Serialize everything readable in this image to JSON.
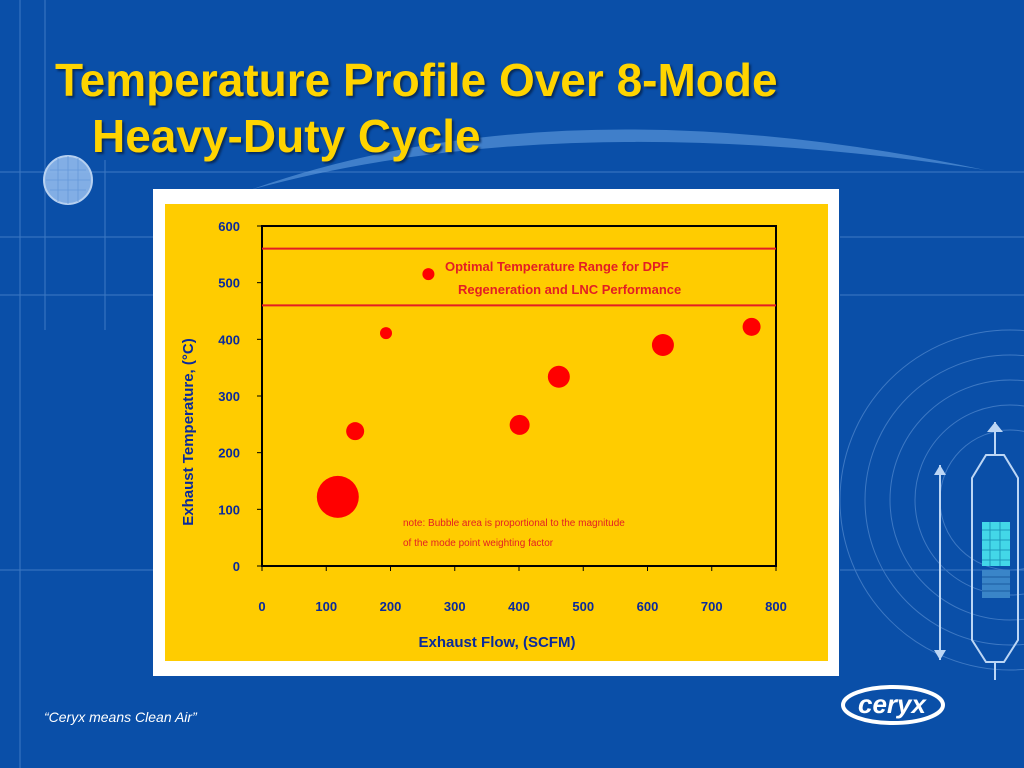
{
  "slide": {
    "title_line1": "Temperature Profile Over 8-Mode",
    "title_line2": "Heavy-Duty Cycle",
    "slogan": "“Ceryx means Clean Air”",
    "logo_text": "ceryx"
  },
  "colors": {
    "background": "#0a4fa8",
    "title": "#ffd400",
    "plot_background": "#ffcc00",
    "bubble": "#ff0000",
    "axis_text": "#0a2a9c",
    "range_line": "#e31e24"
  },
  "chart_data": {
    "type": "scatter",
    "xlabel": "Exhaust Flow, (SCFM)",
    "ylabel": "Exhaust Temperature, (°C)",
    "xlim": [
      0,
      800
    ],
    "ylim": [
      0,
      600
    ],
    "xticks": [
      "0",
      "100",
      "200",
      "300",
      "400",
      "500",
      "600",
      "700",
      "800"
    ],
    "yticks": [
      "0",
      "100",
      "200",
      "300",
      "400",
      "500",
      "600"
    ],
    "points": [
      {
        "x": 118,
        "y": 122,
        "r": 21
      },
      {
        "x": 145,
        "y": 238,
        "r": 9
      },
      {
        "x": 193,
        "y": 411,
        "r": 6
      },
      {
        "x": 259,
        "y": 515,
        "r": 6
      },
      {
        "x": 401,
        "y": 249,
        "r": 10
      },
      {
        "x": 462,
        "y": 334,
        "r": 11
      },
      {
        "x": 624,
        "y": 390,
        "r": 11
      },
      {
        "x": 762,
        "y": 422,
        "r": 9
      }
    ],
    "range_lines": [
      460,
      560
    ],
    "annotation": [
      "Optimal Temperature Range for DPF",
      "Regeneration and LNC Performance"
    ],
    "note": [
      "note: Bubble area is proportional to the magnitude",
      "of the mode point weighting factor"
    ],
    "grid": false,
    "legend": "none"
  }
}
